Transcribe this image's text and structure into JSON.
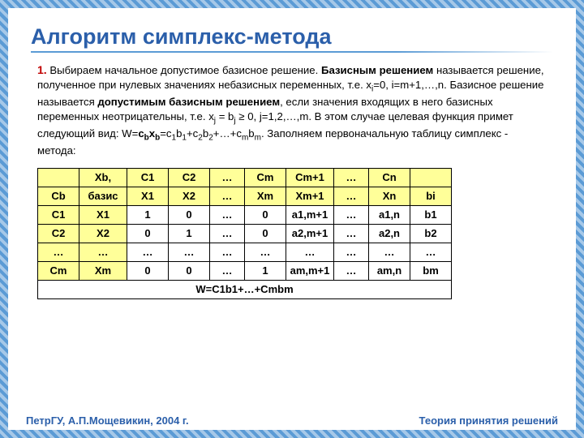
{
  "title": "Алгоритм симплекс-метода",
  "step_num": "1.",
  "para_html": "Выбираем начальное допустимое базисное решение. <b>Базисным решением</b> называется решение, полученное при нулевых значениях небазисных переменных, т.е. x<sub>i</sub>=0, i=m+1,…,n. Базисное решение называется <b>допустимым базисным решением</b>, если значения входящих в него базисных переменных неотрицательны, т.е. x<sub>j</sub> = b<sub>j</sub> ≥ 0, j=1,2,…,m. В этом случае целевая функция примет следующий вид: W=<b>c<sub>b</sub>x<sub>b</sub></b>=c<sub>1</sub>b<sub>1</sub>+c<sub>2</sub>b<sub>2</sub>+…+c<sub>m</sub>b<sub>m</sub>. Заполняем первоначальную таблицу симплекс - метода:",
  "table": {
    "r1": [
      "",
      "Xb,",
      "C1",
      "C2",
      "…",
      "Cm",
      "Cm+1",
      "…",
      "Cn",
      ""
    ],
    "r2": [
      "Cb",
      "базис",
      "X1",
      "X2",
      "…",
      "Xm",
      "Xm+1",
      "…",
      "Xn",
      "bi"
    ],
    "r3": [
      "C1",
      "X1",
      "1",
      "0",
      "…",
      "0",
      "a1,m+1",
      "…",
      "a1,n",
      "b1"
    ],
    "r4": [
      "C2",
      "X2",
      "0",
      "1",
      "…",
      "0",
      "a2,m+1",
      "…",
      "a2,n",
      "b2"
    ],
    "r5": [
      "…",
      "…",
      "…",
      "…",
      "…",
      "…",
      "…",
      "…",
      "…",
      "…"
    ],
    "r6": [
      "Cm",
      "Xm",
      "0",
      "0",
      "…",
      "1",
      "am,m+1",
      "…",
      "am,n",
      "bm"
    ],
    "footer_cell": "W=C1b1+…+Cmbm"
  },
  "footer_left": "ПетрГУ, А.П.Мощевикин, 2004 г.",
  "footer_right": "Теория принятия решений"
}
